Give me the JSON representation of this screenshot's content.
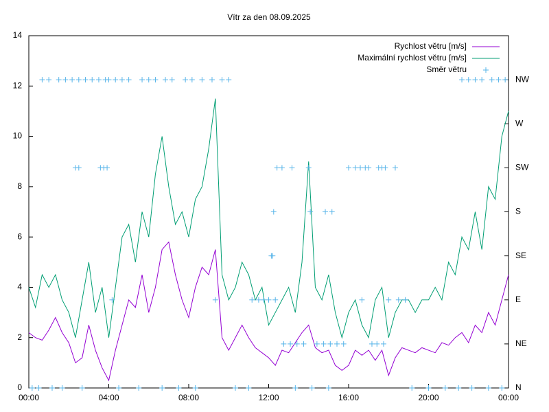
{
  "chart_data": {
    "type": "line",
    "title": "Vítr za den 08.09.2025",
    "x": [
      0,
      20,
      40,
      60,
      80,
      100,
      120,
      140,
      160,
      180,
      200,
      220,
      240,
      260,
      280,
      300,
      320,
      340,
      360,
      380,
      400,
      420,
      440,
      460,
      480,
      500,
      520,
      540,
      560,
      580,
      600,
      620,
      640,
      660,
      680,
      700,
      720,
      740,
      760,
      780,
      800,
      820,
      840,
      860,
      880,
      900,
      920,
      940,
      960,
      980,
      1000,
      1020,
      1040,
      1060,
      1080,
      1100,
      1120,
      1140,
      1160,
      1180,
      1200,
      1220,
      1240,
      1260,
      1280,
      1300,
      1320,
      1340,
      1360,
      1380,
      1400,
      1420,
      1440
    ],
    "series": [
      {
        "name": "Rychlost větru [m/s]",
        "color": "#9400d3",
        "values": [
          2.2,
          2.0,
          1.9,
          2.3,
          2.8,
          2.2,
          1.8,
          1.0,
          1.2,
          2.5,
          1.5,
          0.8,
          0.3,
          1.5,
          2.5,
          3.5,
          3.2,
          4.5,
          3.0,
          4.0,
          5.5,
          5.8,
          4.5,
          3.5,
          2.8,
          4.0,
          4.8,
          4.5,
          5.5,
          2.0,
          1.5,
          2.0,
          2.5,
          2.0,
          1.6,
          1.4,
          1.2,
          0.9,
          1.5,
          1.4,
          1.8,
          2.2,
          2.5,
          1.6,
          1.4,
          1.5,
          0.9,
          0.7,
          0.9,
          1.5,
          1.3,
          1.5,
          1.1,
          1.5,
          0.5,
          1.2,
          1.6,
          1.5,
          1.4,
          1.6,
          1.5,
          1.4,
          1.8,
          1.7,
          2.0,
          2.2,
          1.8,
          2.5,
          2.2,
          3.0,
          2.5,
          3.5,
          4.5
        ]
      },
      {
        "name": "Maximální rychlost větru [m/s]",
        "color": "#009e73",
        "values": [
          4.0,
          3.2,
          4.5,
          4.0,
          4.5,
          3.5,
          3.0,
          2.0,
          3.5,
          5.0,
          3.0,
          4.0,
          2.0,
          4.0,
          6.0,
          6.5,
          5.0,
          7.0,
          6.0,
          8.5,
          10.0,
          8.0,
          6.5,
          7.0,
          6.0,
          7.5,
          8.0,
          9.5,
          11.5,
          4.5,
          3.5,
          4.0,
          5.0,
          4.5,
          3.5,
          4.0,
          2.5,
          3.0,
          3.5,
          4.0,
          3.0,
          5.0,
          9.0,
          4.0,
          3.5,
          4.5,
          3.0,
          2.0,
          3.0,
          3.5,
          2.5,
          2.0,
          3.5,
          4.0,
          2.0,
          3.0,
          3.5,
          3.5,
          3.0,
          3.5,
          3.5,
          4.0,
          3.5,
          5.0,
          4.5,
          6.0,
          5.5,
          7.0,
          5.5,
          8.0,
          7.5,
          10.0,
          11.0
        ]
      },
      {
        "name": "Směr větru",
        "color": "#56b4e9",
        "type": "scatter",
        "axis": "y2",
        "x": [
          40,
          60,
          90,
          110,
          130,
          150,
          170,
          190,
          210,
          230,
          240,
          260,
          280,
          300,
          340,
          360,
          380,
          410,
          430,
          470,
          490,
          520,
          550,
          580,
          600,
          1300,
          1320,
          1340,
          1360,
          1390,
          1410,
          1430,
          10,
          30,
          70,
          100,
          160,
          270,
          330,
          400,
          450,
          500,
          620,
          660,
          800,
          850,
          900,
          1150,
          1200,
          1250,
          1290,
          1330,
          1380,
          1420,
          140,
          150,
          215,
          225,
          235,
          745,
          760,
          790,
          840,
          960,
          980,
          995,
          1010,
          1020,
          1050,
          1060,
          1070,
          1100,
          735,
          845,
          890,
          910,
          728,
          732,
          250,
          560,
          670,
          690,
          705,
          720,
          740,
          1000,
          1080,
          1110,
          1130,
          765,
          785,
          805,
          825,
          865,
          885,
          905,
          925,
          945,
          1030,
          1045,
          1065
        ],
        "values": [
          315,
          315,
          315,
          315,
          315,
          315,
          315,
          315,
          315,
          315,
          315,
          315,
          315,
          315,
          315,
          315,
          315,
          315,
          315,
          315,
          315,
          315,
          315,
          315,
          315,
          315,
          315,
          315,
          315,
          315,
          315,
          315,
          0,
          0,
          0,
          0,
          0,
          0,
          0,
          0,
          0,
          0,
          0,
          0,
          0,
          0,
          0,
          0,
          0,
          0,
          0,
          0,
          0,
          0,
          225,
          225,
          225,
          225,
          225,
          225,
          225,
          225,
          225,
          225,
          225,
          225,
          225,
          225,
          225,
          225,
          225,
          225,
          180,
          180,
          180,
          180,
          135,
          135,
          90,
          90,
          90,
          90,
          90,
          90,
          90,
          90,
          90,
          90,
          90,
          45,
          45,
          45,
          45,
          45,
          45,
          45,
          45,
          45,
          45,
          45,
          45
        ]
      }
    ],
    "xlim": [
      0,
      1440
    ],
    "xticks": [
      {
        "value": 0,
        "label": "00:00"
      },
      {
        "value": 240,
        "label": "04:00"
      },
      {
        "value": 480,
        "label": "08:00"
      },
      {
        "value": 720,
        "label": "12:00"
      },
      {
        "value": 960,
        "label": "16:00"
      },
      {
        "value": 1200,
        "label": "20:00"
      },
      {
        "value": 1440,
        "label": "00:00"
      }
    ],
    "ylim": [
      0,
      14
    ],
    "yticks": [
      0,
      2,
      4,
      6,
      8,
      10,
      12,
      14
    ],
    "y2lim": [
      0,
      360
    ],
    "y2ticks": [
      {
        "value": 0,
        "label": "N"
      },
      {
        "value": 45,
        "label": "NE"
      },
      {
        "value": 90,
        "label": "E"
      },
      {
        "value": 135,
        "label": "SE"
      },
      {
        "value": 180,
        "label": "S"
      },
      {
        "value": 225,
        "label": "SW"
      },
      {
        "value": 270,
        "label": "W"
      },
      {
        "value": 315,
        "label": "NW"
      }
    ],
    "legend": "top-right"
  }
}
